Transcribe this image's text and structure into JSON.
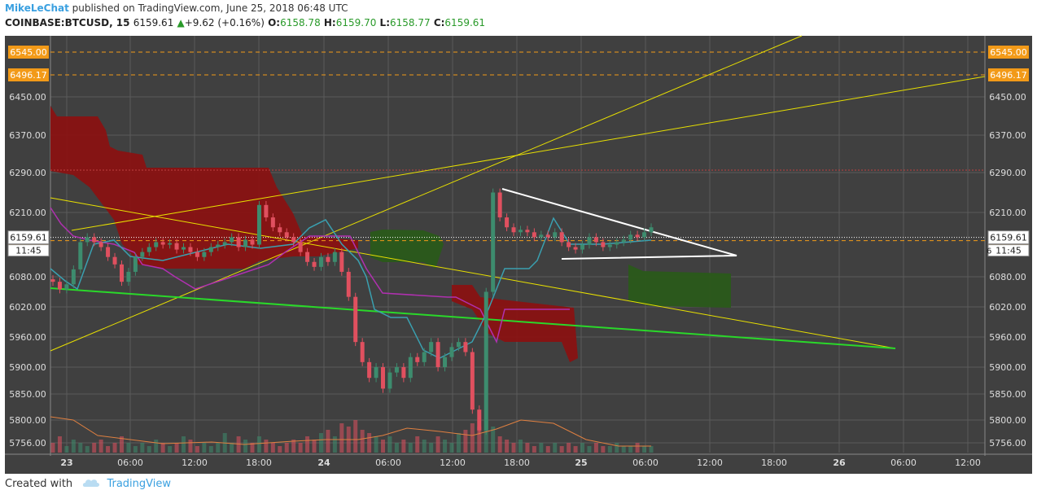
{
  "header": {
    "user": "MikeLeChat",
    "published": "published on TradingView.com, June 25, 2018 06:48 UTC",
    "symbol": "COINBASE:BTCUSD, 15",
    "price": "6159.61",
    "change": "+9.62 (+0.16%)",
    "o_label": "O:",
    "o_value": "6158.78",
    "h_label": "H:",
    "h_value": "6159.70",
    "l_label": "L:",
    "l_value": "6158.77",
    "c_label": "C:",
    "c_value": "6159.61"
  },
  "footer": {
    "created_with": "Created with",
    "brand": "TradingView"
  },
  "colors": {
    "background": "#404040",
    "grid": "#5a5a5a",
    "up_candle": "#3d8c6e",
    "down_candle": "#e0505f",
    "trendline": "#e8e000",
    "support": "#2ad82a",
    "triangle": "#ffffff",
    "cloud_red": "#8b1010",
    "cloud_green": "#2a5a1a",
    "level_badge": "#f29a18"
  },
  "chart_data": {
    "type": "candlestick",
    "y_ticks": [
      6450.0,
      6370.0,
      6290.0,
      6210.0,
      6080.0,
      6020.0,
      5960.0,
      5900.0,
      5850.0,
      5800.0,
      5756.0
    ],
    "x_ticks": [
      "23",
      "06:00",
      "12:00",
      "18:00",
      "24",
      "06:00",
      "12:00",
      "18:00",
      "25",
      "06:00",
      "12:00",
      "18:00",
      "26",
      "06:00",
      "12:00"
    ],
    "bold_x_ticks": [
      "23",
      "24",
      "25",
      "26"
    ],
    "price_levels": [
      {
        "label": "6545.00",
        "value": 6545.0,
        "style": "dashed-orange"
      },
      {
        "label": "6496.17",
        "value": 6496.17,
        "style": "dashed-orange"
      },
      {
        "label": "6153.00",
        "value": 6153.0,
        "style": "dashed-orange"
      }
    ],
    "current_price": {
      "label": "6159.61",
      "value": 6159.61
    },
    "countdown": "11:45",
    "countdown_extra": "6",
    "series_close": [
      6070,
      6055,
      6065,
      6095,
      6150,
      6160,
      6150,
      6140,
      6120,
      6105,
      6070,
      6090,
      6120,
      6130,
      6140,
      6150,
      6145,
      6148,
      6135,
      6140,
      6130,
      6120,
      6130,
      6140,
      6145,
      6150,
      6160,
      6140,
      6155,
      6145,
      6225,
      6200,
      6180,
      6170,
      6160,
      6150,
      6130,
      6110,
      6100,
      6120,
      6110,
      6130,
      6090,
      6040,
      5950,
      5910,
      5880,
      5900,
      5860,
      5890,
      5900,
      5880,
      5920,
      5910,
      5930,
      5950,
      5900,
      5920,
      5940,
      5950,
      5930,
      5820,
      5780,
      6050,
      6250,
      6200,
      6180,
      6170,
      6175,
      6170,
      6160,
      6165,
      6160,
      6170,
      6150,
      6140,
      6135,
      6145,
      6160,
      6150,
      6140,
      6145,
      6150,
      6155,
      6165,
      6160,
      6170,
      6180
    ],
    "volume_relative": [
      0.3,
      0.5,
      0.2,
      0.4,
      0.3,
      0.2,
      0.3,
      0.4,
      0.2,
      0.3,
      0.5,
      0.3,
      0.2,
      0.3,
      0.2,
      0.4,
      0.3,
      0.2,
      0.3,
      0.5,
      0.4,
      0.2,
      0.3,
      0.2,
      0.3,
      0.6,
      0.3,
      0.5,
      0.4,
      0.3,
      0.5,
      0.4,
      0.3,
      0.2,
      0.3,
      0.4,
      0.3,
      0.5,
      0.4,
      0.6,
      0.7,
      0.5,
      0.9,
      0.8,
      1.0,
      0.7,
      0.6,
      0.5,
      0.4,
      0.5,
      0.3,
      0.4,
      0.3,
      0.5,
      0.4,
      0.3,
      0.5,
      0.4,
      0.3,
      0.6,
      0.7,
      0.9,
      0.8,
      1.0,
      0.8,
      0.5,
      0.4,
      0.3,
      0.4,
      0.3,
      0.2,
      0.3,
      0.2,
      0.3,
      0.2,
      0.3,
      0.2,
      0.3,
      0.2,
      0.3,
      0.2,
      0.2,
      0.3,
      0.2,
      0.2,
      0.3,
      0.2,
      0.2
    ],
    "grid": true
  }
}
